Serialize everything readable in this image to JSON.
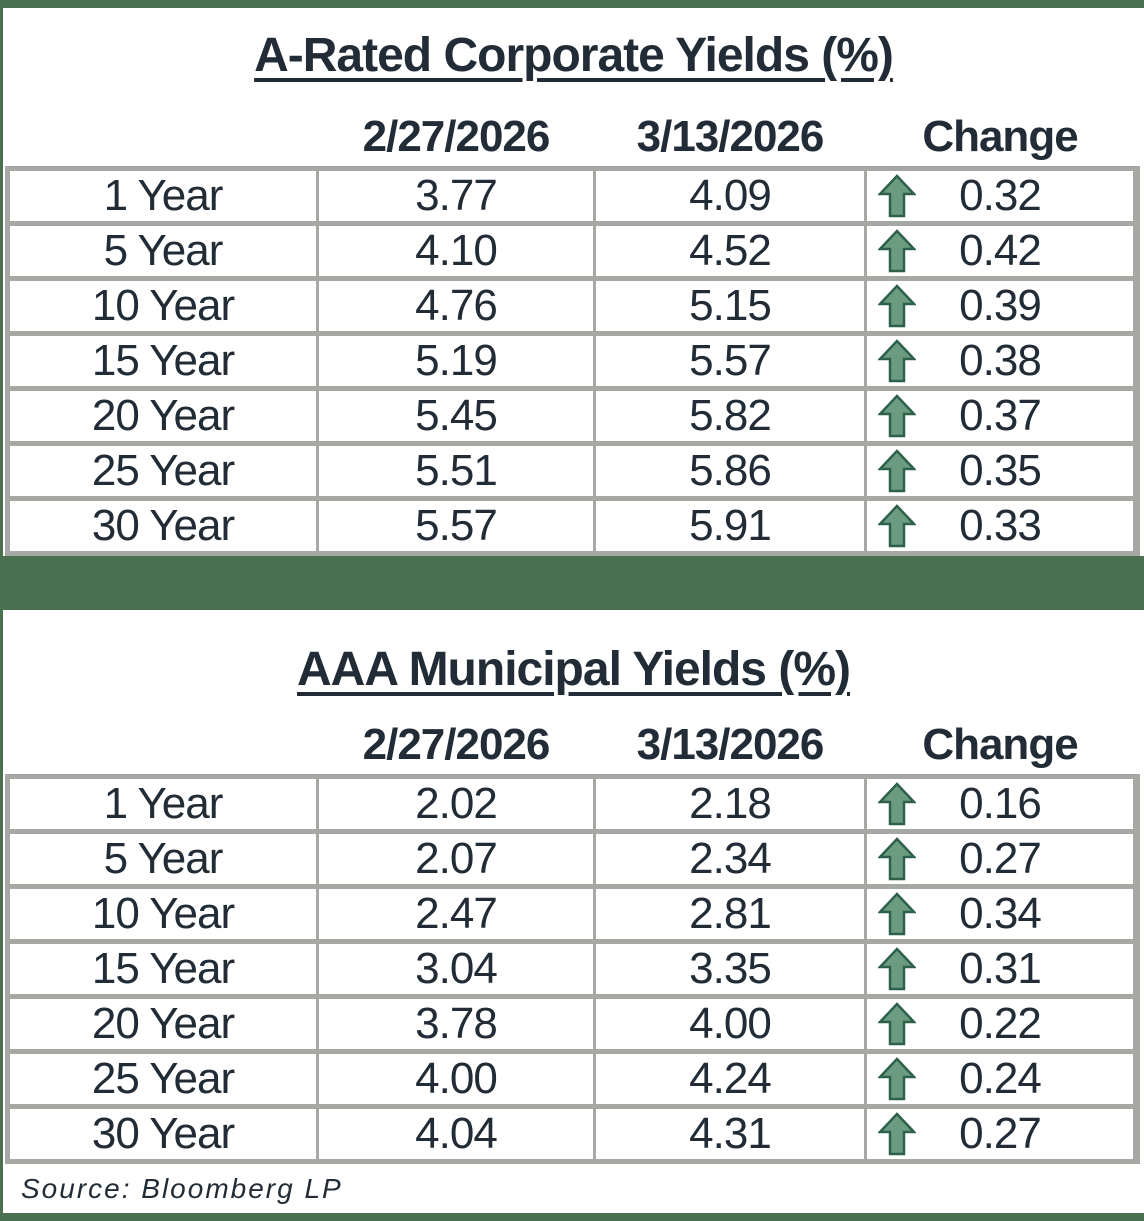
{
  "theme": {
    "accent_green": "#4a7050",
    "border_gray": "#a6a9a3",
    "text_color": "#212c36",
    "arrow_fill": "#6b9c82",
    "arrow_outline": "#2e614b"
  },
  "icons": {
    "change_up": "up-arrow-icon"
  },
  "chart_data": [
    {
      "type": "table",
      "title": "A-Rated Corporate Yields (%)",
      "columns": [
        "",
        "2/27/2026",
        "3/13/2026",
        "Change"
      ],
      "rows": [
        {
          "term": "1 Year",
          "prev": "3.77",
          "curr": "4.09",
          "change": "0.32",
          "direction": "up"
        },
        {
          "term": "5 Year",
          "prev": "4.10",
          "curr": "4.52",
          "change": "0.42",
          "direction": "up"
        },
        {
          "term": "10 Year",
          "prev": "4.76",
          "curr": "5.15",
          "change": "0.39",
          "direction": "up"
        },
        {
          "term": "15 Year",
          "prev": "5.19",
          "curr": "5.57",
          "change": "0.38",
          "direction": "up"
        },
        {
          "term": "20 Year",
          "prev": "5.45",
          "curr": "5.82",
          "change": "0.37",
          "direction": "up"
        },
        {
          "term": "25 Year",
          "prev": "5.51",
          "curr": "5.86",
          "change": "0.35",
          "direction": "up"
        },
        {
          "term": "30 Year",
          "prev": "5.57",
          "curr": "5.91",
          "change": "0.33",
          "direction": "up"
        }
      ]
    },
    {
      "type": "table",
      "title": "AAA Municipal Yields (%)",
      "columns": [
        "",
        "2/27/2026",
        "3/13/2026",
        "Change"
      ],
      "rows": [
        {
          "term": "1 Year",
          "prev": "2.02",
          "curr": "2.18",
          "change": "0.16",
          "direction": "up"
        },
        {
          "term": "5 Year",
          "prev": "2.07",
          "curr": "2.34",
          "change": "0.27",
          "direction": "up"
        },
        {
          "term": "10 Year",
          "prev": "2.47",
          "curr": "2.81",
          "change": "0.34",
          "direction": "up"
        },
        {
          "term": "15 Year",
          "prev": "3.04",
          "curr": "3.35",
          "change": "0.31",
          "direction": "up"
        },
        {
          "term": "20 Year",
          "prev": "3.78",
          "curr": "4.00",
          "change": "0.22",
          "direction": "up"
        },
        {
          "term": "25 Year",
          "prev": "4.00",
          "curr": "4.24",
          "change": "0.24",
          "direction": "up"
        },
        {
          "term": "30 Year",
          "prev": "4.04",
          "curr": "4.31",
          "change": "0.27",
          "direction": "up"
        }
      ]
    }
  ],
  "source_note": "Source: Bloomberg LP"
}
